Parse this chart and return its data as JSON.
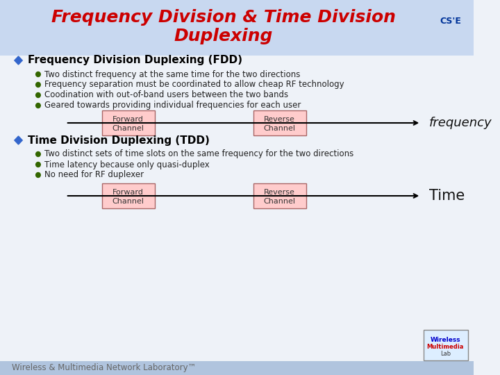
{
  "title_line1": "Frequency Division & Time Division",
  "title_line2": "Duplexing",
  "title_color": "#cc0000",
  "bg_color": "#eef2f8",
  "header_bg": "#c8d8f0",
  "fdd_header": "Frequency Division Duplexing (FDD)",
  "fdd_bullets": [
    "Two distinct frequency at the same time for the two directions",
    "Frequency separation must be coordinated to allow cheap RF technology",
    "Coodination with out-of-band users between the two bands",
    "Geared towards providing individual frequencies for each user"
  ],
  "tdd_header": "Time Division Duplexing (TDD)",
  "tdd_bullets": [
    "Two distinct sets of time slots on the same frequency for the two directions",
    "Time latency because only quasi-duplex",
    "No need for RF duplexer"
  ],
  "diamond_color": "#3366cc",
  "bullet_color": "#336600",
  "box_facecolor": "#ffcccc",
  "box_edgecolor": "#aa6666",
  "footer_text": "Wireless & Multimedia Network Laboratory™",
  "footer_color": "#666666",
  "frequency_label": "frequency",
  "time_label": "Time"
}
